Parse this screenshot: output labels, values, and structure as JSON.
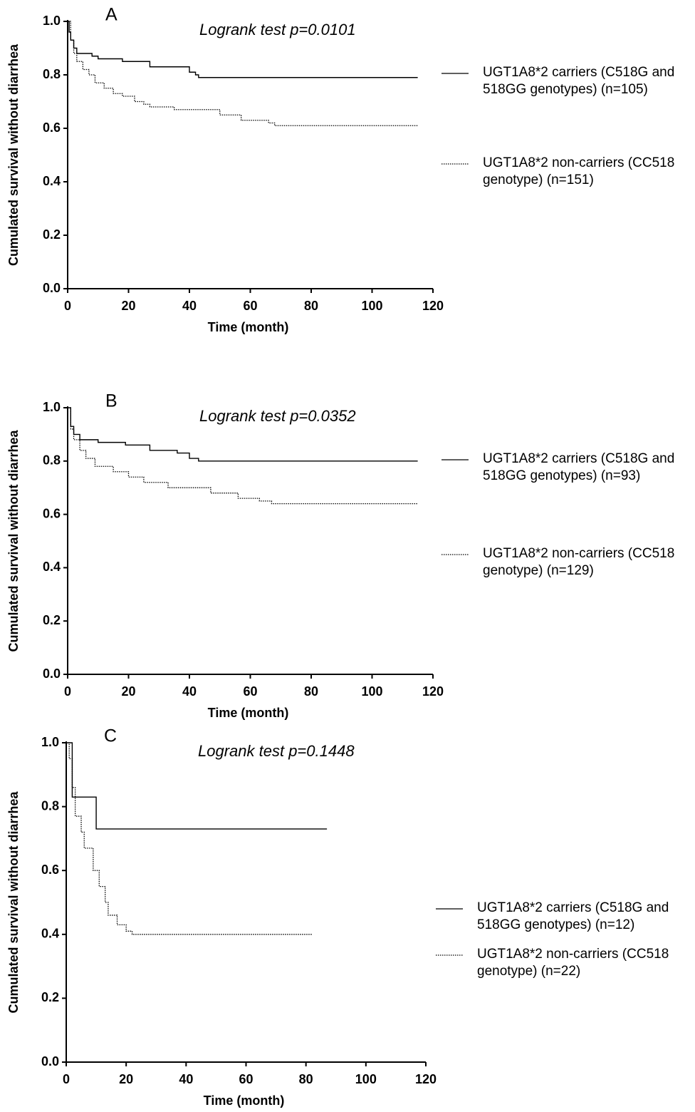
{
  "chart_data": [
    {
      "type": "line",
      "drawstyle": "steps-post",
      "label": "A",
      "annotation": "Logrank test p=0.0101",
      "xlabel": "Time (month)",
      "ylabel": "Cumulated survival without diarrhea",
      "xlim": [
        0,
        120
      ],
      "xticks": [
        0,
        20,
        40,
        60,
        80,
        100,
        120
      ],
      "ylim": [
        0,
        1
      ],
      "yticks": [
        {
          "value": 0,
          "label": "0.0"
        },
        0.2,
        0.4,
        0.6,
        0.8,
        {
          "value": 1,
          "label": "1.0"
        }
      ],
      "series": [
        {
          "name": "UGT1A8*2 carriers (C518G and 518GG genotypes) (n=105)",
          "color": "#000000",
          "linestyle": "solid",
          "x": [
            0,
            0.5,
            1,
            2,
            3,
            8,
            10,
            18,
            27,
            40,
            42,
            43,
            115
          ],
          "values": [
            1.0,
            0.96,
            0.93,
            0.9,
            0.88,
            0.87,
            0.86,
            0.85,
            0.83,
            0.81,
            0.8,
            0.79,
            0.79
          ]
        },
        {
          "name": "UGT1A8*2 non-carriers (CC518 genotype) (n=151)",
          "color": "#000000",
          "linestyle": "dotted",
          "x": [
            0,
            1,
            2,
            3,
            5,
            7,
            9,
            12,
            15,
            18,
            22,
            25,
            27,
            35,
            50,
            57,
            66,
            68,
            115
          ],
          "values": [
            1.0,
            0.93,
            0.88,
            0.85,
            0.82,
            0.8,
            0.77,
            0.75,
            0.73,
            0.72,
            0.7,
            0.69,
            0.68,
            0.67,
            0.65,
            0.63,
            0.62,
            0.61,
            0.61
          ]
        }
      ]
    },
    {
      "type": "line",
      "drawstyle": "steps-post",
      "label": "B",
      "annotation": "Logrank test p=0.0352",
      "xlabel": "Time (month)",
      "ylabel": "Cumulated survival without diarrhea",
      "xlim": [
        0,
        120
      ],
      "xticks": [
        0,
        20,
        40,
        60,
        80,
        100,
        120
      ],
      "ylim": [
        0,
        1
      ],
      "yticks": [
        {
          "value": 0,
          "label": "0.0"
        },
        0.2,
        0.4,
        0.6,
        0.8,
        {
          "value": 1,
          "label": "1.0"
        }
      ],
      "series": [
        {
          "name": "UGT1A8*2 carriers (C518G and 518GG genotypes) (n=93)",
          "color": "#000000",
          "linestyle": "solid",
          "x": [
            0,
            1,
            2,
            4,
            10,
            19,
            27,
            36,
            40,
            43,
            115
          ],
          "values": [
            1.0,
            0.93,
            0.9,
            0.88,
            0.87,
            0.86,
            0.84,
            0.83,
            0.81,
            0.8,
            0.8
          ]
        },
        {
          "name": "UGT1A8*2 non-carriers (CC518 genotype) (n=129)",
          "color": "#000000",
          "linestyle": "dotted",
          "x": [
            0,
            1,
            2,
            4,
            6,
            9,
            15,
            20,
            25,
            33,
            47,
            56,
            63,
            67,
            115
          ],
          "values": [
            1.0,
            0.92,
            0.88,
            0.84,
            0.81,
            0.78,
            0.76,
            0.74,
            0.72,
            0.7,
            0.68,
            0.66,
            0.65,
            0.64,
            0.64
          ]
        }
      ]
    },
    {
      "type": "line",
      "drawstyle": "steps-post",
      "label": "C",
      "annotation": "Logrank test p=0.1448",
      "xlabel": "Time (month)",
      "ylabel": "Cumulated survival without diarrhea",
      "xlim": [
        0,
        120
      ],
      "xticks": [
        0,
        20,
        40,
        60,
        80,
        100,
        120
      ],
      "ylim": [
        0,
        1
      ],
      "yticks": [
        {
          "value": 0,
          "label": "0.0"
        },
        0.2,
        0.4,
        0.6,
        0.8,
        {
          "value": 1,
          "label": "1.0"
        }
      ],
      "series": [
        {
          "name": "UGT1A8*2 carriers (C518G and 518GG genotypes) (n=12)",
          "color": "#000000",
          "linestyle": "solid",
          "x": [
            0,
            2,
            10,
            87
          ],
          "values": [
            1.0,
            0.83,
            0.73,
            0.73
          ]
        },
        {
          "name": "UGT1A8*2 non-carriers (CC518 genotype) (n=22)",
          "color": "#000000",
          "linestyle": "dotted",
          "x": [
            0,
            1,
            2,
            3,
            5,
            6,
            9,
            11,
            13,
            14,
            17,
            20,
            22,
            82
          ],
          "values": [
            1.0,
            0.95,
            0.86,
            0.77,
            0.72,
            0.67,
            0.6,
            0.55,
            0.5,
            0.46,
            0.43,
            0.41,
            0.4,
            0.4
          ]
        }
      ]
    }
  ]
}
